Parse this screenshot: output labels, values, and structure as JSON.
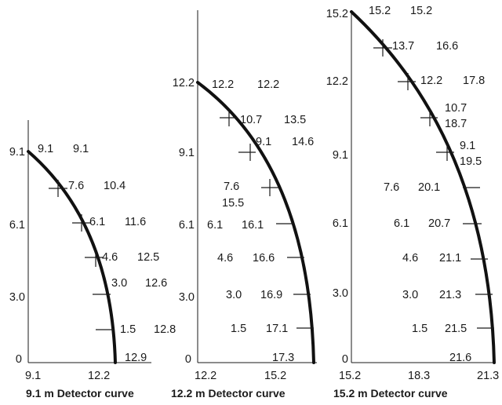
{
  "panels": [
    {
      "caption": "9.1 m Detector curve",
      "y_ticks": [
        "0",
        "3.0",
        "6.1",
        "9.1"
      ],
      "x_ticks": [
        "9.1",
        "12.2"
      ],
      "curve_points": [
        {
          "left": "9.1",
          "right": "9.1",
          "stacked": false
        },
        {
          "left": "7.6",
          "right": "10.4",
          "stacked": false
        },
        {
          "left": "6.1",
          "right": "11.6",
          "stacked": false
        },
        {
          "left": "4.6",
          "right": "12.5",
          "stacked": false
        },
        {
          "left": "3.0",
          "right": "12.6",
          "stacked": false
        },
        {
          "left": "1.5",
          "right": "12.8",
          "stacked": false
        },
        {
          "left": "",
          "right": "12.9",
          "stacked": false
        }
      ]
    },
    {
      "caption": "12.2 m Detector curve",
      "y_ticks": [
        "0",
        "3.0",
        "6.1",
        "9.1",
        "12.2"
      ],
      "x_ticks": [
        "12.2",
        "15.2"
      ],
      "curve_points": [
        {
          "left": "12.2",
          "right": "12.2",
          "stacked": false
        },
        {
          "left": "10.7",
          "right": "13.5",
          "stacked": false
        },
        {
          "left": "9.1",
          "right": "14.6",
          "stacked": false
        },
        {
          "left": "7.6",
          "right": "15.5",
          "stacked": true
        },
        {
          "left": "6.1",
          "right": "16.1",
          "stacked": false
        },
        {
          "left": "4.6",
          "right": "16.6",
          "stacked": false
        },
        {
          "left": "3.0",
          "right": "16.9",
          "stacked": false
        },
        {
          "left": "1.5",
          "right": "17.1",
          "stacked": false
        },
        {
          "left": "",
          "right": "17.3",
          "stacked": false
        }
      ]
    },
    {
      "caption": "15.2 m Detector curve",
      "y_ticks": [
        "0",
        "3.0",
        "6.1",
        "9.1",
        "12.2",
        "15.2"
      ],
      "x_ticks": [
        "15.2",
        "18.3",
        "21.3"
      ],
      "curve_points": [
        {
          "left": "15.2",
          "right": "15.2",
          "stacked": false
        },
        {
          "left": "13.7",
          "right": "16.6",
          "stacked": false
        },
        {
          "left": "12.2",
          "right": "17.8",
          "stacked": false
        },
        {
          "left": "10.7",
          "right": "18.7",
          "stacked": true
        },
        {
          "left": "9.1",
          "right": "19.5",
          "stacked": true
        },
        {
          "left": "7.6",
          "right": "20.1",
          "stacked": false
        },
        {
          "left": "6.1",
          "right": "20.7",
          "stacked": false
        },
        {
          "left": "4.6",
          "right": "21.1",
          "stacked": false
        },
        {
          "left": "3.0",
          "right": "21.3",
          "stacked": false
        },
        {
          "left": "1.5",
          "right": "21.5",
          "stacked": false
        },
        {
          "left": "",
          "right": "21.6",
          "stacked": false
        }
      ]
    }
  ]
}
